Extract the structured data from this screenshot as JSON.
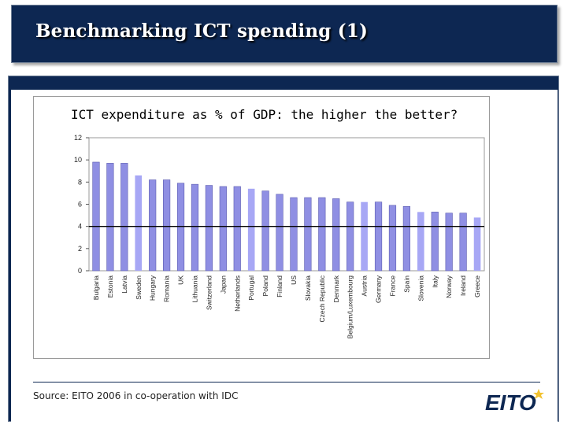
{
  "slide": {
    "title": "Benchmarking ICT spending (1)",
    "source": "Source: EITO 2006 in co-operation with IDC",
    "logo_text": "EITO"
  },
  "colors": {
    "header_bg": "#0d2752",
    "bar_primary": "#8f8fe3",
    "bar_highlight": "#a7a7f5",
    "logo_star": "#f2c230"
  },
  "chart_data": {
    "type": "bar",
    "title": "ICT expenditure as % of GDP: the higher the better?",
    "categories": [
      "Bulgaria",
      "Estonia",
      "Latvia",
      "Sweden",
      "Hungary",
      "Romania",
      "UK",
      "Lithuania",
      "Switzerland",
      "Japan",
      "Netherlands",
      "Portugal",
      "Poland",
      "Finland",
      "US",
      "Slovakia",
      "Czech Republic",
      "Denmark",
      "Belgium/Luxembourg",
      "Austria",
      "Germany",
      "France",
      "Spain",
      "Slovenia",
      "Italy",
      "Norway",
      "Ireland",
      "Greece"
    ],
    "values": [
      9.8,
      9.7,
      9.7,
      8.6,
      8.2,
      8.2,
      7.9,
      7.8,
      7.7,
      7.6,
      7.6,
      7.4,
      7.2,
      6.9,
      6.6,
      6.6,
      6.6,
      6.5,
      6.2,
      6.2,
      6.2,
      5.9,
      5.8,
      5.3,
      5.3,
      5.2,
      5.2,
      4.8
    ],
    "highlighted": [
      "Sweden",
      "Portugal",
      "Austria",
      "Slovenia",
      "Greece"
    ],
    "ylim": [
      0,
      12
    ],
    "yticks": [
      0,
      2,
      4,
      6,
      8,
      10,
      12
    ],
    "reference_line": 4,
    "xlabel": "",
    "ylabel": "",
    "grid": false,
    "legend": "none"
  }
}
